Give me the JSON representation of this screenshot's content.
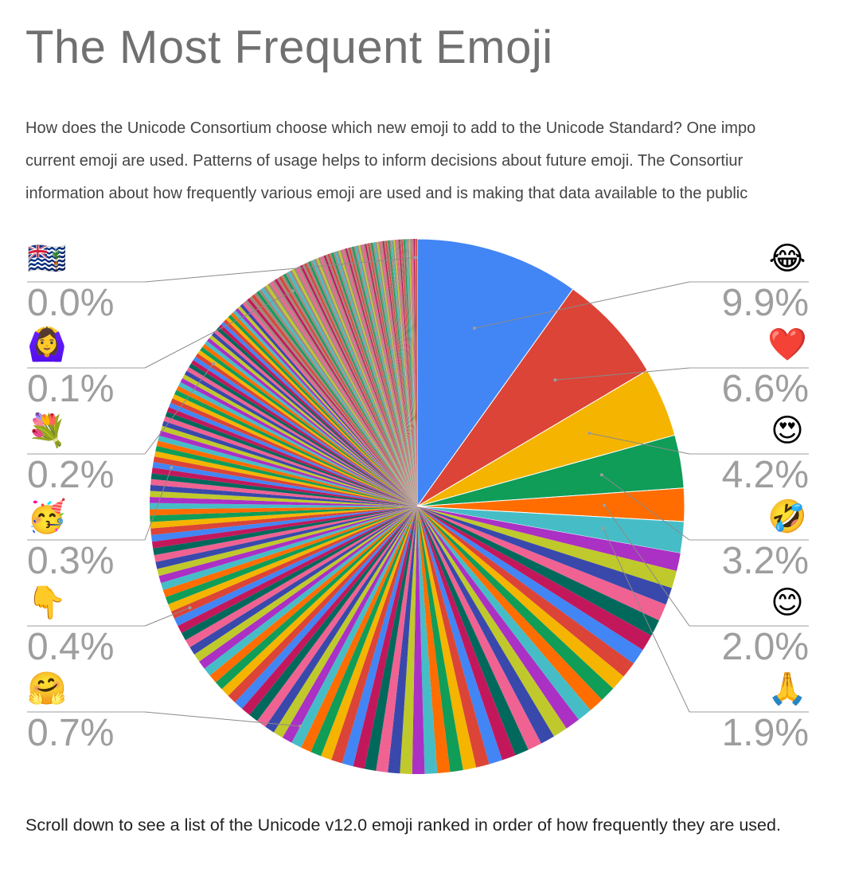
{
  "page": {
    "title": "The Most Frequent Emoji",
    "intro_lines": [
      "How does the Unicode Consortium choose which new emoji to add to the Unicode Standard? One impo",
      "current emoji are used. Patterns of usage helps to inform decisions about future emoji. The Consortiur",
      "information about how frequently various emoji are used and is making that data available to the public"
    ],
    "footer": "Scroll down to see a list of the Unicode v12.0 emoji ranked in order of how frequently they are used."
  },
  "chart_data": {
    "type": "pie",
    "start_angle_deg": 0,
    "direction": "clockwise",
    "total_slices": 230,
    "labeled_slices": [
      {
        "emoji": "😂",
        "value": 9.9,
        "color": "#4285f4",
        "side": "right"
      },
      {
        "emoji": "❤️",
        "value": 6.6,
        "color": "#db4437",
        "side": "right"
      },
      {
        "emoji": "😍",
        "value": 4.2,
        "color": "#f4b400",
        "side": "right"
      },
      {
        "emoji": "🤣",
        "value": 3.2,
        "color": "#0f9d58",
        "side": "right"
      },
      {
        "emoji": "😊",
        "value": 2.0,
        "color": "#ff6d00",
        "side": "right"
      },
      {
        "emoji": "🙏",
        "value": 1.9,
        "color": "#46bdc6",
        "side": "right"
      }
    ],
    "left_labels": [
      {
        "emoji": "🇮🇴",
        "value": "0.0%"
      },
      {
        "emoji": "🙆‍♀️",
        "value": "0.1%"
      },
      {
        "emoji": "💐",
        "value": "0.2%"
      },
      {
        "emoji": "🥳",
        "value": "0.3%"
      },
      {
        "emoji": "👇",
        "value": "0.4%"
      },
      {
        "emoji": "🤗",
        "value": "0.7%"
      }
    ],
    "right_label_texts": [
      "9.9%",
      "6.6%",
      "4.2%",
      "3.2%",
      "2.0%",
      "1.9%"
    ],
    "palette": [
      "#4285f4",
      "#db4437",
      "#f4b400",
      "#0f9d58",
      "#ff6d00",
      "#46bdc6",
      "#ab30c4",
      "#c0c92b",
      "#3949ab",
      "#f06292",
      "#00695c",
      "#c2185b",
      "#4285f4",
      "#db4437",
      "#f4b400",
      "#0f9d58",
      "#ff6d00",
      "#46bdc6",
      "#ab30c4",
      "#c0c92b",
      "#3949ab",
      "#f06292",
      "#00695c",
      "#c2185b",
      "#a1887f"
    ],
    "tail_color": "#a1887f",
    "leader_line_color": "#8a8a8a",
    "label_underline_color": "#9e9e9e"
  }
}
